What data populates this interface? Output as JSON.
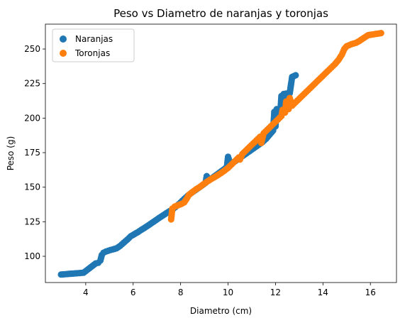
{
  "chart_data": {
    "type": "scatter",
    "title": "Peso vs Diametro de naranjas y toronjas",
    "xlabel": "Diametro (cm)",
    "ylabel": "Peso (g)",
    "xlim": [
      2.3,
      17.1
    ],
    "ylim": [
      81,
      268
    ],
    "xticks": [
      4,
      6,
      8,
      10,
      12,
      14,
      16
    ],
    "yticks": [
      100,
      125,
      150,
      175,
      200,
      225,
      250
    ],
    "legend": "top-left",
    "grid": false,
    "series": [
      {
        "name": "Naranjas",
        "color": "#1f77b4",
        "points": [
          [
            2.96,
            86.8
          ],
          [
            3.91,
            88.1
          ],
          [
            4.42,
            94.8
          ],
          [
            4.53,
            95.3
          ],
          [
            4.62,
            97.0
          ],
          [
            4.68,
            101.0
          ],
          [
            4.75,
            102.6
          ],
          [
            4.85,
            103.4
          ],
          [
            4.95,
            104.0
          ],
          [
            5.05,
            104.6
          ],
          [
            5.15,
            105.0
          ],
          [
            5.3,
            105.8
          ],
          [
            5.45,
            107.5
          ],
          [
            5.6,
            109.8
          ],
          [
            5.75,
            112.0
          ],
          [
            5.9,
            114.5
          ],
          [
            6.05,
            116.0
          ],
          [
            6.2,
            117.5
          ],
          [
            6.35,
            119.2
          ],
          [
            6.5,
            120.8
          ],
          [
            6.65,
            122.5
          ],
          [
            6.8,
            124.3
          ],
          [
            6.95,
            126.0
          ],
          [
            7.1,
            127.8
          ],
          [
            7.25,
            129.5
          ],
          [
            7.4,
            131.2
          ],
          [
            7.55,
            132.8
          ],
          [
            7.7,
            134.5
          ],
          [
            7.85,
            136.6
          ],
          [
            8.0,
            139.0
          ],
          [
            8.15,
            141.5
          ],
          [
            8.3,
            143.8
          ],
          [
            8.45,
            145.8
          ],
          [
            8.6,
            147.6
          ],
          [
            8.75,
            149.4
          ],
          [
            8.9,
            151.2
          ],
          [
            9.05,
            153.1
          ],
          [
            9.2,
            155.0
          ],
          [
            9.35,
            156.9
          ],
          [
            9.5,
            158.8
          ],
          [
            9.65,
            160.7
          ],
          [
            9.8,
            162.6
          ],
          [
            9.95,
            164.5
          ],
          [
            10.1,
            166.3
          ],
          [
            10.25,
            168.2
          ],
          [
            10.4,
            170.0
          ],
          [
            10.55,
            171.8
          ],
          [
            10.7,
            173.6
          ],
          [
            10.85,
            175.4
          ],
          [
            11.0,
            177.2
          ],
          [
            11.15,
            179.0
          ],
          [
            11.3,
            180.8
          ],
          [
            11.45,
            182.6
          ],
          [
            11.6,
            185.0
          ],
          [
            11.75,
            188.0
          ],
          [
            11.9,
            191.0
          ],
          [
            12.0,
            194.0
          ],
          [
            12.1,
            199.0
          ],
          [
            12.2,
            203.0
          ],
          [
            12.3,
            208.0
          ],
          [
            12.25,
            216.0
          ],
          [
            12.35,
            217.5
          ],
          [
            12.6,
            218.0
          ],
          [
            12.7,
            229.8
          ],
          [
            12.85,
            231.0
          ],
          [
            11.95,
            204.5
          ],
          [
            12.05,
            206.5
          ],
          [
            9.1,
            158.0
          ],
          [
            10.0,
            172.0
          ]
        ]
      },
      {
        "name": "Toronjas",
        "color": "#ff7f0e",
        "points": [
          [
            7.6,
            126.7
          ],
          [
            7.65,
            134.5
          ],
          [
            7.75,
            136.0
          ],
          [
            7.9,
            137.0
          ],
          [
            8.05,
            138.0
          ],
          [
            8.15,
            139.0
          ],
          [
            8.25,
            141.5
          ],
          [
            8.35,
            144.5
          ],
          [
            8.5,
            146.5
          ],
          [
            8.65,
            148.5
          ],
          [
            8.8,
            150.0
          ],
          [
            8.95,
            152.0
          ],
          [
            9.1,
            153.8
          ],
          [
            9.25,
            155.5
          ],
          [
            9.4,
            157.0
          ],
          [
            9.55,
            158.5
          ],
          [
            9.7,
            160.2
          ],
          [
            9.85,
            162.0
          ],
          [
            10.0,
            164.0
          ],
          [
            10.15,
            166.5
          ],
          [
            10.3,
            169.0
          ],
          [
            10.45,
            171.5
          ],
          [
            10.6,
            174.0
          ],
          [
            10.75,
            176.5
          ],
          [
            10.9,
            179.0
          ],
          [
            11.05,
            181.5
          ],
          [
            11.2,
            184.0
          ],
          [
            11.35,
            186.5
          ],
          [
            11.5,
            189.0
          ],
          [
            11.65,
            191.5
          ],
          [
            11.8,
            194.0
          ],
          [
            11.95,
            196.5
          ],
          [
            12.1,
            199.0
          ],
          [
            12.25,
            201.5
          ],
          [
            12.4,
            204.0
          ],
          [
            12.55,
            206.5
          ],
          [
            12.7,
            209.0
          ],
          [
            12.85,
            211.5
          ],
          [
            13.0,
            214.0
          ],
          [
            13.15,
            216.5
          ],
          [
            13.3,
            219.0
          ],
          [
            13.45,
            221.5
          ],
          [
            13.6,
            224.0
          ],
          [
            13.75,
            226.5
          ],
          [
            13.9,
            229.0
          ],
          [
            14.05,
            231.5
          ],
          [
            14.2,
            234.0
          ],
          [
            14.35,
            236.5
          ],
          [
            14.5,
            239.0
          ],
          [
            14.65,
            242.0
          ],
          [
            14.8,
            246.0
          ],
          [
            14.9,
            250.0
          ],
          [
            15.0,
            252.0
          ],
          [
            15.2,
            253.5
          ],
          [
            15.4,
            254.5
          ],
          [
            15.55,
            256.0
          ],
          [
            15.9,
            260.0
          ],
          [
            16.45,
            261.5
          ],
          [
            12.3,
            206.0
          ],
          [
            12.45,
            212.0
          ],
          [
            12.6,
            214.5
          ],
          [
            11.4,
            182.0
          ],
          [
            10.5,
            170.0
          ]
        ]
      }
    ]
  }
}
